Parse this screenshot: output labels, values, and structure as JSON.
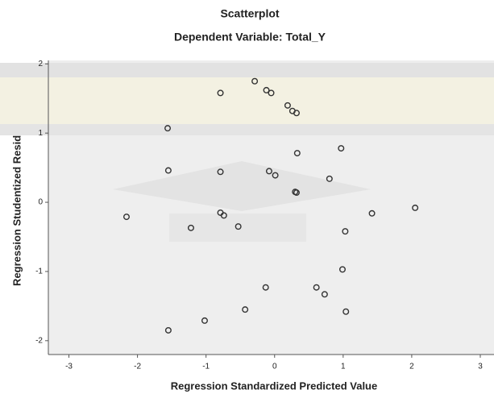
{
  "chart_data": {
    "type": "scatter",
    "title": "Scatterplot",
    "subtitle": "Dependent Variable: Total_Y",
    "x_label": "Regression Standardized Predicted Value",
    "y_label": "Regression Studentized Residual",
    "xlim": [
      -3.3,
      3.2
    ],
    "ylim": [
      -2.2,
      2.05
    ],
    "xticks": [
      -3,
      -2,
      -1,
      0,
      1,
      2,
      3
    ],
    "yticks": [
      -2,
      -1,
      0,
      1,
      2
    ],
    "series": [
      {
        "color": "#333333",
        "x": [
          -0.29,
          -0.79,
          -0.12,
          -0.05,
          0.19,
          0.26,
          0.32,
          -1.56,
          0.97,
          0.33,
          -1.55,
          -0.79,
          -0.08,
          0.01,
          0.8,
          0.3,
          0.32,
          -2.16,
          -0.79,
          -0.74,
          -1.22,
          -0.53,
          1.42,
          2.05,
          1.03,
          0.99,
          -0.13,
          0.61,
          0.73,
          -0.43,
          1.04,
          -1.02,
          -1.55
        ],
        "values": [
          1.75,
          1.58,
          1.62,
          1.58,
          1.4,
          1.32,
          1.29,
          1.07,
          0.78,
          0.71,
          0.46,
          0.44,
          0.45,
          0.39,
          0.34,
          0.15,
          0.14,
          -0.21,
          -0.15,
          -0.19,
          -0.37,
          -0.35,
          -0.16,
          -0.08,
          -0.42,
          -0.97,
          -1.23,
          -1.23,
          -1.33,
          -1.55,
          -1.58,
          -1.71,
          -1.85
        ]
      }
    ]
  }
}
